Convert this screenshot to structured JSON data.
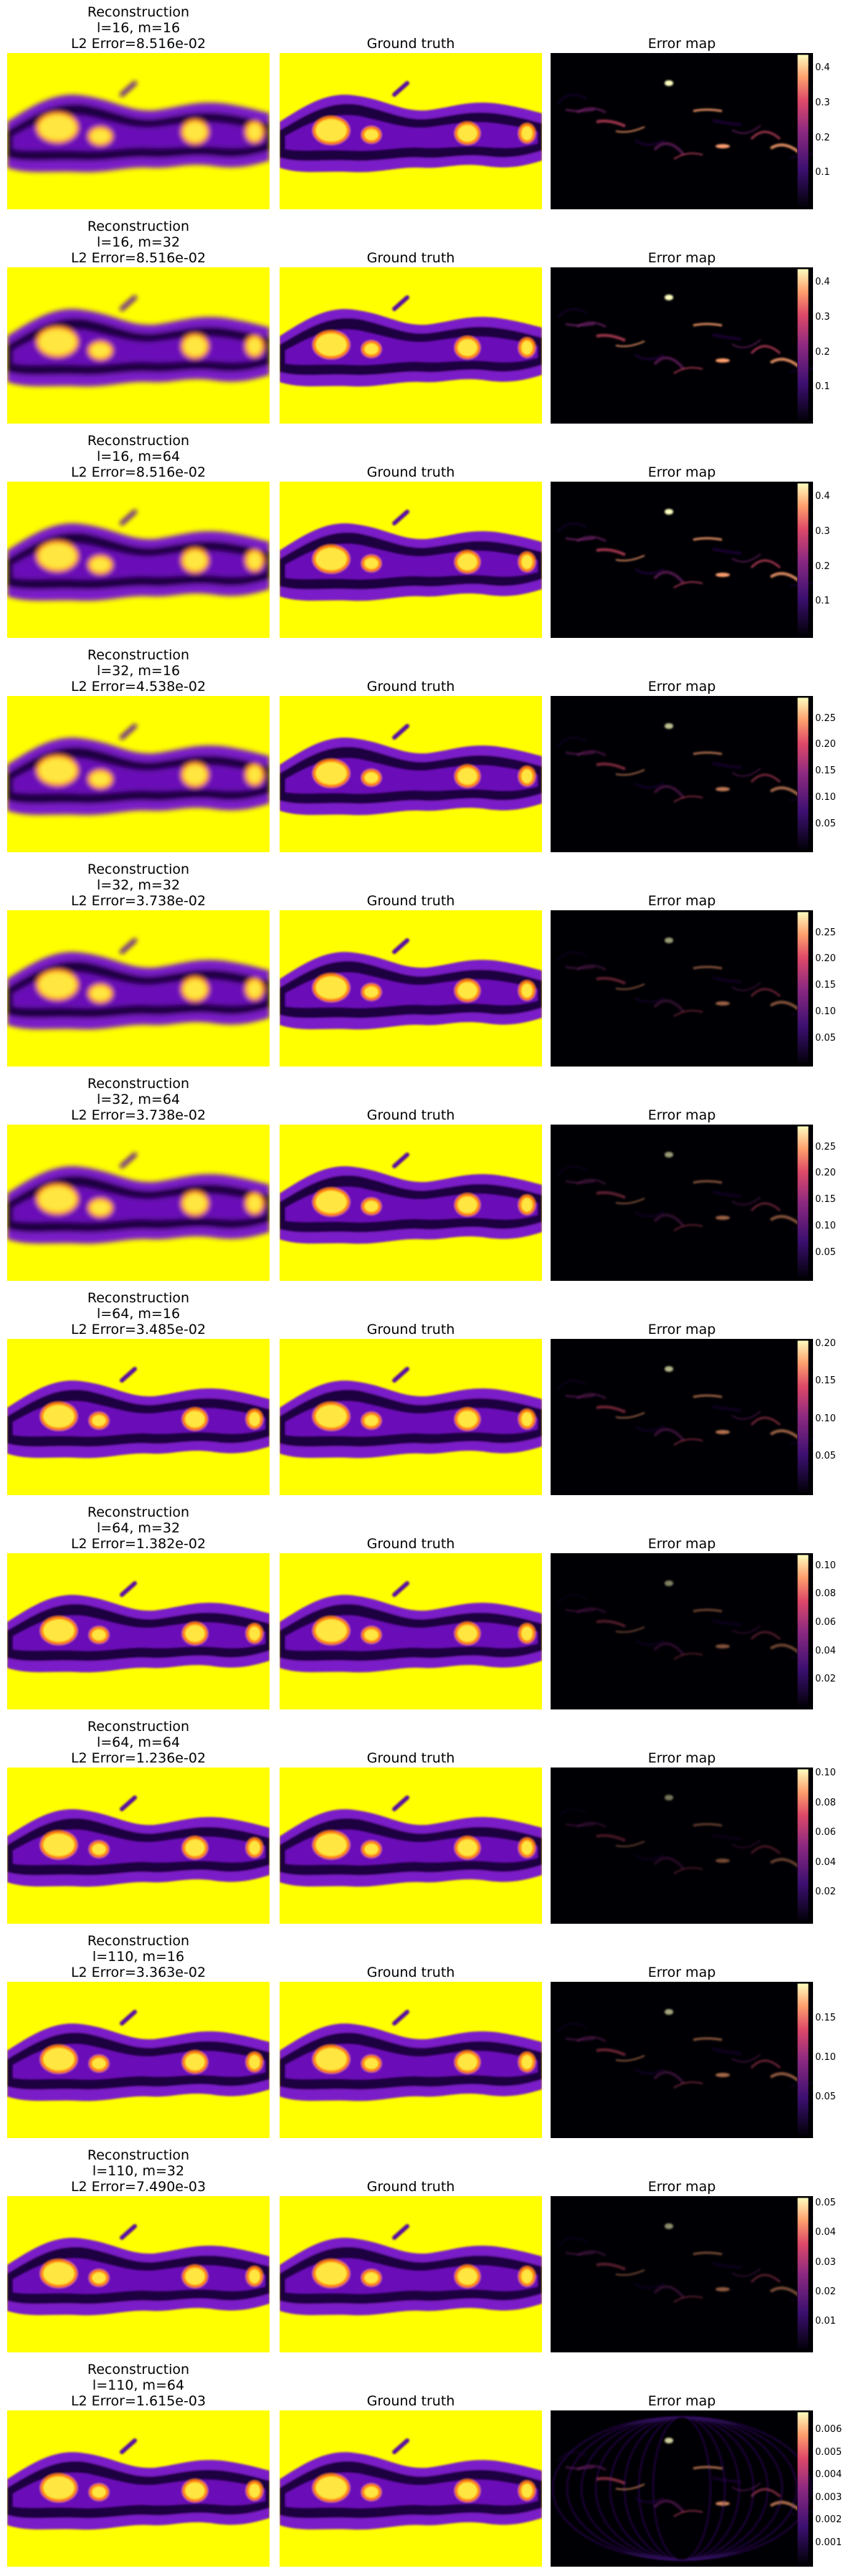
{
  "chart_data": {
    "type": "heatmap",
    "columns": [
      "Reconstruction",
      "Ground truth",
      "Error map"
    ],
    "colormaps": {
      "field": "gnuplot-like (black-purple-yellow)",
      "error": "magma"
    },
    "rows": [
      {
        "label": "l=16, m=16",
        "l": 16,
        "m": 16,
        "error_text": "L2 Error=8.516e-02",
        "l2_error": 0.08516,
        "cbar_ticks": [
          "0.1",
          "0.2",
          "0.3",
          "0.4"
        ],
        "cbar_range": [
          0,
          0.44
        ]
      },
      {
        "label": "l=16, m=32",
        "l": 16,
        "m": 32,
        "error_text": "L2 Error=8.516e-02",
        "l2_error": 0.08516,
        "cbar_ticks": [
          "0.1",
          "0.2",
          "0.3",
          "0.4"
        ],
        "cbar_range": [
          0,
          0.44
        ]
      },
      {
        "label": "l=16, m=64",
        "l": 16,
        "m": 64,
        "error_text": "L2 Error=8.516e-02",
        "l2_error": 0.08516,
        "cbar_ticks": [
          "0.1",
          "0.2",
          "0.3",
          "0.4"
        ],
        "cbar_range": [
          0,
          0.44
        ]
      },
      {
        "label": "l=32, m=16",
        "l": 32,
        "m": 16,
        "error_text": "L2 Error=4.538e-02",
        "l2_error": 0.04538,
        "cbar_ticks": [
          "0.05",
          "0.10",
          "0.15",
          "0.20",
          "0.25"
        ],
        "cbar_range": [
          0,
          0.29
        ]
      },
      {
        "label": "l=32, m=32",
        "l": 32,
        "m": 32,
        "error_text": "L2 Error=3.738e-02",
        "l2_error": 0.03738,
        "cbar_ticks": [
          "0.05",
          "0.10",
          "0.15",
          "0.20",
          "0.25"
        ],
        "cbar_range": [
          0,
          0.29
        ]
      },
      {
        "label": "l=32, m=64",
        "l": 32,
        "m": 64,
        "error_text": "L2 Error=3.738e-02",
        "l2_error": 0.03738,
        "cbar_ticks": [
          "0.05",
          "0.10",
          "0.15",
          "0.20",
          "0.25"
        ],
        "cbar_range": [
          0,
          0.29
        ]
      },
      {
        "label": "l=64, m=16",
        "l": 64,
        "m": 16,
        "error_text": "L2 Error=3.485e-02",
        "l2_error": 0.03485,
        "cbar_ticks": [
          "0.05",
          "0.10",
          "0.15",
          "0.20"
        ],
        "cbar_range": [
          0,
          0.205
        ]
      },
      {
        "label": "l=64, m=32",
        "l": 64,
        "m": 32,
        "error_text": "L2 Error=1.382e-02",
        "l2_error": 0.01382,
        "cbar_ticks": [
          "0.02",
          "0.04",
          "0.06",
          "0.08",
          "0.10"
        ],
        "cbar_range": [
          0,
          0.108
        ]
      },
      {
        "label": "l=64, m=64",
        "l": 64,
        "m": 64,
        "error_text": "L2 Error=1.236e-02",
        "l2_error": 0.01236,
        "cbar_ticks": [
          "0.02",
          "0.04",
          "0.06",
          "0.08",
          "0.10"
        ],
        "cbar_range": [
          0,
          0.103
        ]
      },
      {
        "label": "l=110, m=16",
        "l": 110,
        "m": 16,
        "error_text": "L2 Error=3.363e-02",
        "l2_error": 0.03363,
        "cbar_ticks": [
          "0.05",
          "0.10",
          "0.15"
        ],
        "cbar_range": [
          0,
          0.195
        ]
      },
      {
        "label": "l=110, m=32",
        "l": 110,
        "m": 32,
        "error_text": "L2 Error=7.490e-03",
        "l2_error": 0.00749,
        "cbar_ticks": [
          "0.01",
          "0.02",
          "0.03",
          "0.04",
          "0.05"
        ],
        "cbar_range": [
          0,
          0.052
        ]
      },
      {
        "label": "l=110, m=64",
        "l": 110,
        "m": 64,
        "error_text": "L2 Error=1.615e-03",
        "l2_error": 0.001615,
        "cbar_ticks": [
          "0.001",
          "0.002",
          "0.003",
          "0.004",
          "0.005",
          "0.006"
        ],
        "cbar_range": [
          0,
          0.0068
        ]
      }
    ]
  }
}
